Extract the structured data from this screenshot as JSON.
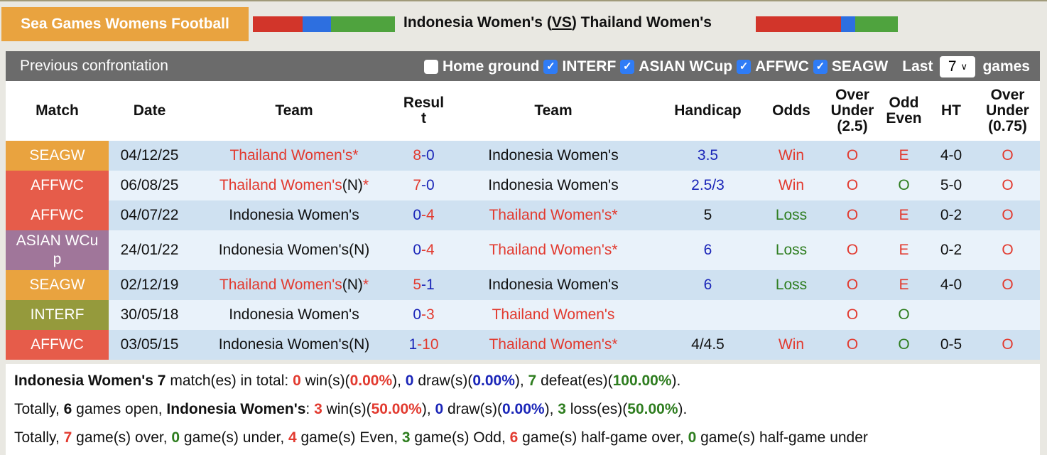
{
  "header": {
    "league_title": "Sea Games Womens Football",
    "home_team": "Indonesia Women's",
    "vs": "VS",
    "away_team": "Thailand Women's",
    "home_bar": [
      {
        "color": "#d2352a",
        "weight": 70
      },
      {
        "color": "#2d6fe0",
        "weight": 40
      },
      {
        "color": "#4fa33e",
        "weight": 90
      }
    ],
    "away_bar": [
      {
        "color": "#d2352a",
        "weight": 120
      },
      {
        "color": "#2d6fe0",
        "weight": 20
      },
      {
        "color": "#4fa33e",
        "weight": 60
      }
    ]
  },
  "section": {
    "title": "Previous confrontation",
    "filters": [
      {
        "label": "Home ground",
        "checked": false
      },
      {
        "label": "INTERF",
        "checked": true
      },
      {
        "label": "ASIAN WCup",
        "checked": true
      },
      {
        "label": "AFFWC",
        "checked": true
      },
      {
        "label": "SEAGW",
        "checked": true
      }
    ],
    "last_label": "Last",
    "last_value": "7",
    "games_label": "games"
  },
  "columns": [
    "Match",
    "Date",
    "Team",
    "Result",
    "Team",
    "Handicap",
    "Odds",
    "Over Under (2.5)",
    "Odd Even",
    "HT",
    "Over Under (0.75)"
  ],
  "colors": {
    "SEAGW": "#e9a33f",
    "AFFWC": "#e65c4a",
    "ASIAN WCup": "#a0769a",
    "INTERF": "#959a3c"
  },
  "rows": [
    {
      "match": "SEAGW",
      "date": "04/12/25",
      "home": "Thailand Women's",
      "home_n": "",
      "home_star": "*",
      "home_c": "red",
      "hs": "8",
      "as": "0",
      "hs_c": "red",
      "as_c": "blue",
      "away": "Indonesia Women's",
      "away_star": "",
      "away_c": "blk",
      "handicap": "3.5",
      "hc_c": "blue",
      "odds": "Win",
      "odds_c": "red",
      "ou": "O",
      "oe": "E",
      "oe_c": "red",
      "ht": "4-0",
      "ou2": "O"
    },
    {
      "match": "AFFWC",
      "date": "06/08/25",
      "home": "Thailand Women's",
      "home_n": "(N)",
      "home_star": "*",
      "home_c": "red",
      "hs": "7",
      "as": "0",
      "hs_c": "red",
      "as_c": "blue",
      "away": "Indonesia Women's",
      "away_star": "",
      "away_c": "blk",
      "handicap": "2.5/3",
      "hc_c": "blue",
      "odds": "Win",
      "odds_c": "red",
      "ou": "O",
      "oe": "O",
      "oe_c": "green",
      "ht": "5-0",
      "ou2": "O"
    },
    {
      "match": "AFFWC",
      "date": "04/07/22",
      "home": "Indonesia Women's",
      "home_n": "",
      "home_star": "",
      "home_c": "blk",
      "hs": "0",
      "as": "4",
      "hs_c": "blue",
      "as_c": "red",
      "away": "Thailand Women's",
      "away_star": "*",
      "away_c": "red",
      "handicap": "5",
      "hc_c": "blk",
      "odds": "Loss",
      "odds_c": "green",
      "ou": "O",
      "oe": "E",
      "oe_c": "red",
      "ht": "0-2",
      "ou2": "O"
    },
    {
      "match": "ASIAN WCup",
      "date": "24/01/22",
      "home": "Indonesia Women's",
      "home_n": "(N)",
      "home_star": "",
      "home_c": "blk",
      "hs": "0",
      "as": "4",
      "hs_c": "blue",
      "as_c": "red",
      "away": "Thailand Women's",
      "away_star": "*",
      "away_c": "red",
      "handicap": "6",
      "hc_c": "blue",
      "odds": "Loss",
      "odds_c": "green",
      "ou": "O",
      "oe": "E",
      "oe_c": "red",
      "ht": "0-2",
      "ou2": "O"
    },
    {
      "match": "SEAGW",
      "date": "02/12/19",
      "home": "Thailand Women's",
      "home_n": "(N)",
      "home_star": "*",
      "home_c": "red",
      "hs": "5",
      "as": "1",
      "hs_c": "red",
      "as_c": "blue",
      "away": "Indonesia Women's",
      "away_star": "",
      "away_c": "blk",
      "handicap": "6",
      "hc_c": "blue",
      "odds": "Loss",
      "odds_c": "green",
      "ou": "O",
      "oe": "E",
      "oe_c": "red",
      "ht": "4-0",
      "ou2": "O"
    },
    {
      "match": "INTERF",
      "date": "30/05/18",
      "home": "Indonesia Women's",
      "home_n": "",
      "home_star": "",
      "home_c": "blk",
      "hs": "0",
      "as": "3",
      "hs_c": "blue",
      "as_c": "red",
      "away": "Thailand Women's",
      "away_star": "",
      "away_c": "red",
      "handicap": "",
      "hc_c": "blk",
      "odds": "",
      "odds_c": "red",
      "ou": "O",
      "oe": "O",
      "oe_c": "green",
      "ht": "",
      "ou2": ""
    },
    {
      "match": "AFFWC",
      "date": "03/05/15",
      "home": "Indonesia Women's",
      "home_n": "(N)",
      "home_star": "",
      "home_c": "blk",
      "hs": "1",
      "as": "10",
      "hs_c": "blue",
      "as_c": "red",
      "away": "Thailand Women's",
      "away_star": "*",
      "away_c": "red",
      "handicap": "4/4.5",
      "hc_c": "blk",
      "odds": "Win",
      "odds_c": "red",
      "ou": "O",
      "oe": "O",
      "oe_c": "green",
      "ht": "0-5",
      "ou2": "O"
    }
  ],
  "summary": [
    [
      {
        "t": "Indonesia Women's 7",
        "c": "b"
      },
      {
        "t": " match(es) in total: "
      },
      {
        "t": "0",
        "c": "red"
      },
      {
        "t": " win(s)("
      },
      {
        "t": "0.00%",
        "c": "red"
      },
      {
        "t": "), "
      },
      {
        "t": "0",
        "c": "blue"
      },
      {
        "t": " draw(s)("
      },
      {
        "t": "0.00%",
        "c": "blue"
      },
      {
        "t": "), "
      },
      {
        "t": "7",
        "c": "green"
      },
      {
        "t": " defeat(es)("
      },
      {
        "t": "100.00%",
        "c": "green"
      },
      {
        "t": ")."
      }
    ],
    [
      {
        "t": "Totally, "
      },
      {
        "t": "6",
        "c": "b"
      },
      {
        "t": " games open, "
      },
      {
        "t": "Indonesia Women's",
        "c": "b"
      },
      {
        "t": ": "
      },
      {
        "t": "3",
        "c": "red"
      },
      {
        "t": " win(s)("
      },
      {
        "t": "50.00%",
        "c": "red"
      },
      {
        "t": "), "
      },
      {
        "t": "0",
        "c": "blue"
      },
      {
        "t": " draw(s)("
      },
      {
        "t": "0.00%",
        "c": "blue"
      },
      {
        "t": "), "
      },
      {
        "t": "3",
        "c": "green"
      },
      {
        "t": " loss(es)("
      },
      {
        "t": "50.00%",
        "c": "green"
      },
      {
        "t": ")."
      }
    ],
    [
      {
        "t": "Totally, "
      },
      {
        "t": "7",
        "c": "red"
      },
      {
        "t": " game(s) over, "
      },
      {
        "t": "0",
        "c": "green"
      },
      {
        "t": " game(s) under, "
      },
      {
        "t": "4",
        "c": "red"
      },
      {
        "t": " game(s) Even, "
      },
      {
        "t": "3",
        "c": "green"
      },
      {
        "t": " game(s) Odd, "
      },
      {
        "t": "6",
        "c": "red"
      },
      {
        "t": " game(s) half-game over, "
      },
      {
        "t": "0",
        "c": "green"
      },
      {
        "t": " game(s) half-game under"
      }
    ]
  ]
}
